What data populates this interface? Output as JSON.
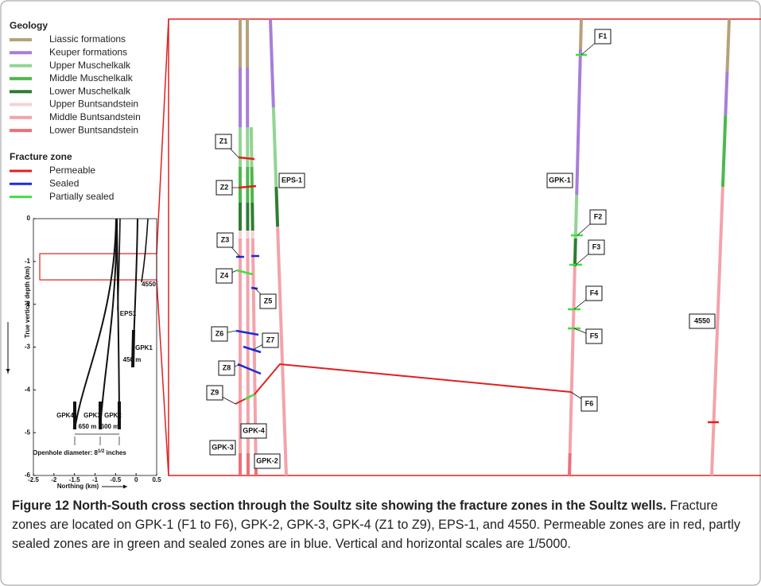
{
  "legend": {
    "geology_title": "Geology",
    "geology": [
      {
        "name": "Liassic formations",
        "color": "#b5a27a"
      },
      {
        "name": "Keuper formations",
        "color": "#a77ed8"
      },
      {
        "name": "Upper Muschelkalk",
        "color": "#92d492"
      },
      {
        "name": "Middle Muschelkalk",
        "color": "#4cb84c"
      },
      {
        "name": "Lower Muschelkalk",
        "color": "#2e7d32"
      },
      {
        "name": "Upper Buntsandstein",
        "color": "#f3d3d7"
      },
      {
        "name": "Middle Buntsandstein",
        "color": "#f3a3aa"
      },
      {
        "name": "Lower Buntsandstein",
        "color": "#ec6f78"
      }
    ],
    "fracture_title": "Fracture zone",
    "fracture": [
      {
        "name": "Permeable",
        "color": "#e02020"
      },
      {
        "name": "Sealed",
        "color": "#1a2ae0"
      },
      {
        "name": "Partially sealed",
        "color": "#3ee03e"
      }
    ]
  },
  "main_section": {
    "wells": [
      "GPK-3",
      "GPK-4",
      "GPK-2",
      "EPS-1",
      "GPK-1",
      "4550"
    ],
    "fractures": [
      "Z1",
      "Z2",
      "Z3",
      "Z4",
      "Z5",
      "Z6",
      "Z7",
      "Z8",
      "Z9",
      "F1",
      "F2",
      "F3",
      "F4",
      "F5",
      "F6"
    ]
  },
  "inset": {
    "y_label": "True vertical depth (km)",
    "x_label": "Northing (km)",
    "xlim": [
      -2.5,
      0.5
    ],
    "ylim": [
      0,
      -6
    ],
    "xticks": [
      -2.5,
      -2,
      -1.5,
      -1,
      -0.5,
      0,
      0.5
    ],
    "yticks": [
      0,
      -1,
      -2,
      -3,
      -4,
      -5,
      -6
    ],
    "well_labels": [
      "GPK4",
      "GPK3",
      "GPK2",
      "GPK1",
      "EPS1",
      "4550"
    ],
    "annotations": [
      "450 m",
      "650 m",
      "600 m"
    ],
    "openhole": [
      "Openhole diameter: 8",
      "1/2",
      " inches"
    ]
  },
  "caption": {
    "label": "Figure 12",
    "title": "North-South cross section through the Soultz site showing the fracture zones in the Soultz wells.",
    "text": "Fracture zones are located on GPK-1 (F1 to F6), GPK-2, GPK-3, GPK-4 (Z1 to Z9), EPS-1, and 4550. Permeable zones are in red, partly sealed zones are in green and sealed zones are in blue. Vertical and horizontal scales are 1/5000."
  }
}
